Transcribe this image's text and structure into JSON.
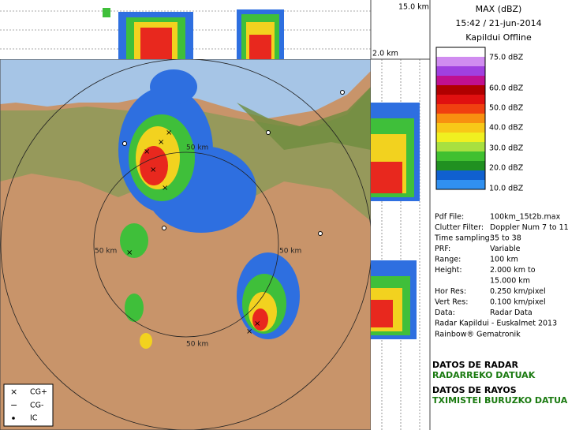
{
  "cross_section": {
    "top_label": "15.0 km",
    "side_label": "2.0 km"
  },
  "header": {
    "title": "MAX (dBZ)",
    "datetime": "15:42 / 21-jun-2014",
    "status": "Kapildui Offline"
  },
  "color_scale": {
    "labels": [
      "75.0 dBZ",
      "60.0 dBZ",
      "50.0 dBZ",
      "40.0 dBZ",
      "30.0 dBZ",
      "20.0 dBZ",
      "10.0 dBZ"
    ]
  },
  "info": {
    "rows": [
      {
        "key": "Pdf File:",
        "value": "100km_15t2b.max"
      },
      {
        "key": "Clutter Filter:",
        "value": "Doppler Num 7 to 11"
      },
      {
        "key": "Time sampling:",
        "value": "35 to 38"
      },
      {
        "key": "PRF:",
        "value": "Variable"
      },
      {
        "key": "Range:",
        "value": "100 km"
      },
      {
        "key": "Height:",
        "value": "2.000 km to"
      },
      {
        "value": "15.000 km"
      },
      {
        "key": "Hor Res:",
        "value": "0.250 km/pixel"
      },
      {
        "key": "Vert Res:",
        "value": "0.100 km/pixel"
      },
      {
        "key": "Data:",
        "value": "Radar Data"
      }
    ],
    "credits": [
      "Radar Kapildui - Euskalmet 2013",
      "Rainbow® Gematronik"
    ]
  },
  "links": [
    {
      "es": "DATOS DE RADAR",
      "eu": "RADARREKO DATUAK"
    },
    {
      "es": "DATOS DE RAYOS",
      "eu": "TXIMISTEI BURUZKO DATUAK"
    }
  ],
  "map": {
    "range_labels": [
      "50 km",
      "50 km",
      "50 km",
      "50 km"
    ]
  },
  "legend": [
    "CG+",
    "CG-",
    "IC"
  ]
}
